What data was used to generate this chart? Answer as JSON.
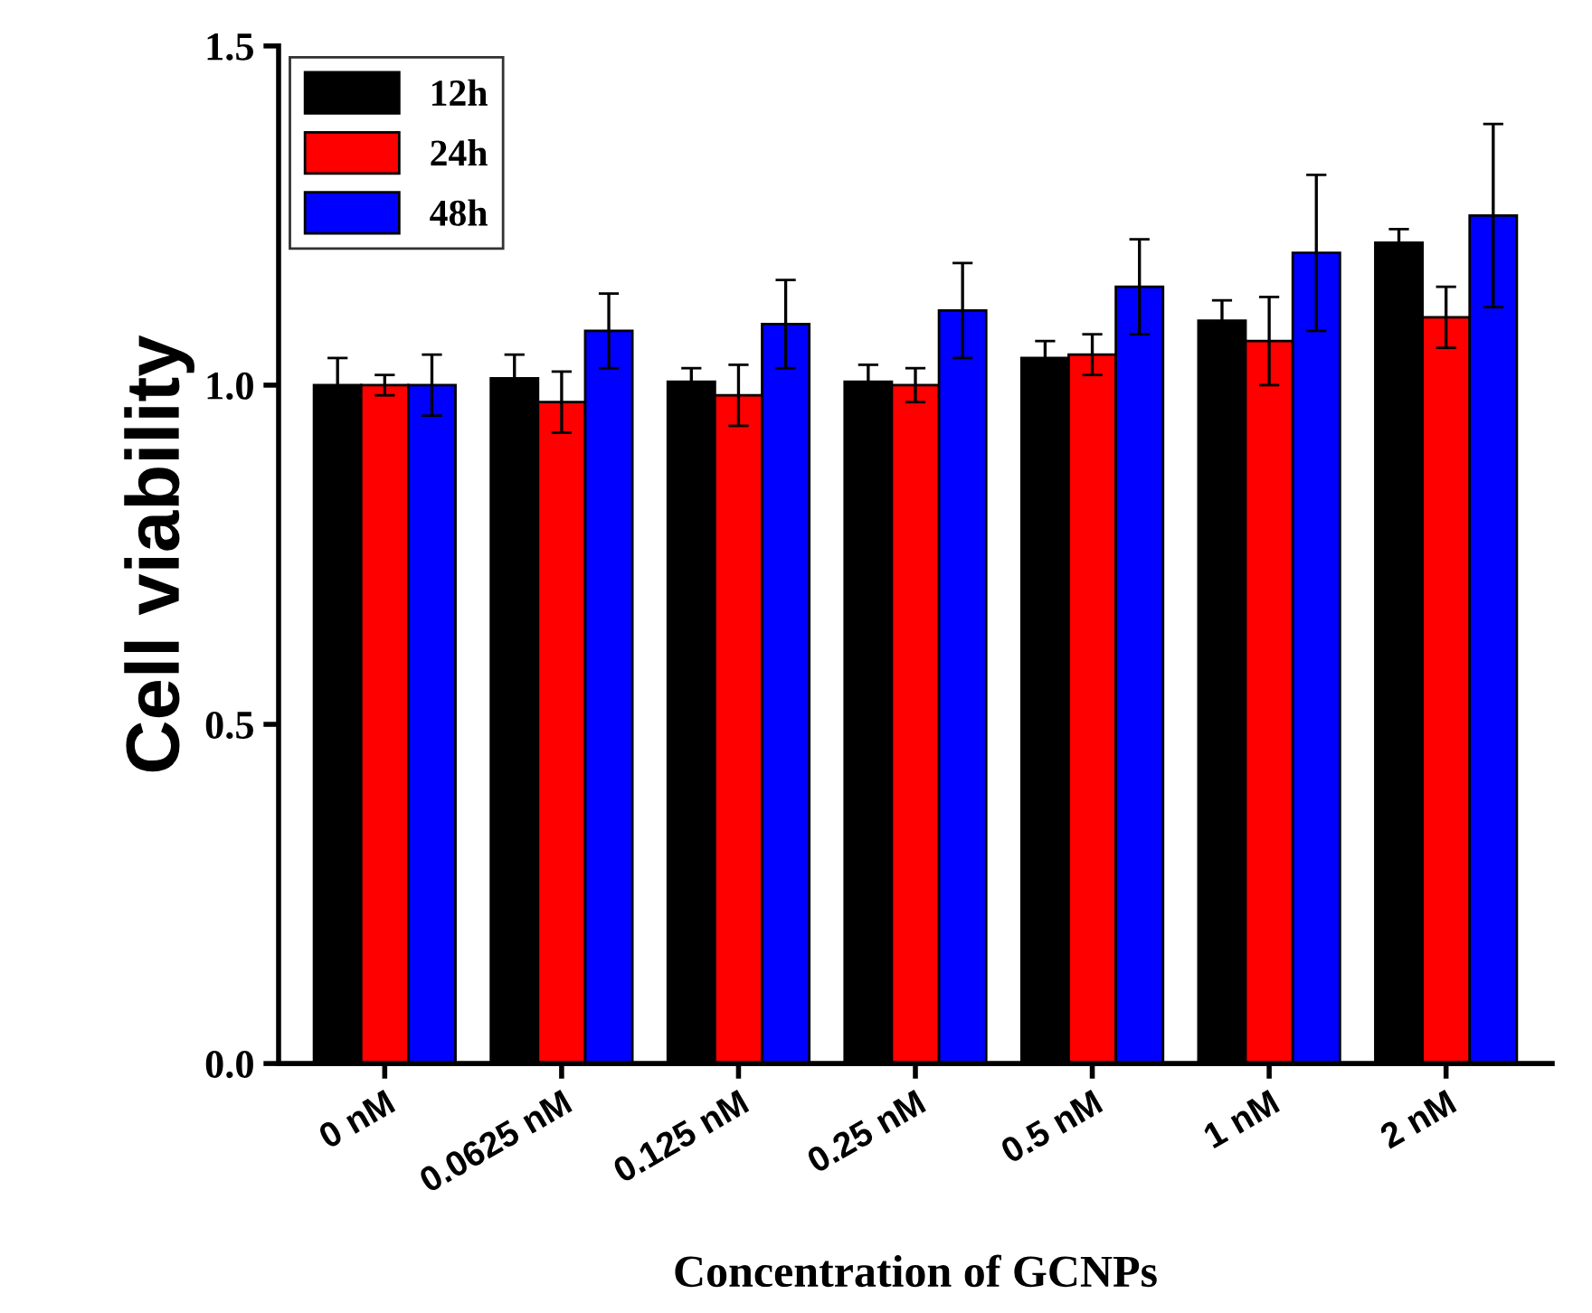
{
  "chart_data": {
    "type": "bar",
    "xlabel": "Concentration of GCNPs",
    "ylabel": "Cell viability",
    "categories": [
      "0 nM",
      "0.0625 nM",
      "0.125 nM",
      "0.25 nM",
      "0.5 nM",
      "1 nM",
      "2 nM"
    ],
    "series": [
      {
        "name": "12h",
        "color": "#000000",
        "values": [
          1.0,
          1.01,
          1.005,
          1.005,
          1.04,
          1.095,
          1.21
        ],
        "errors": [
          0.04,
          0.035,
          0.02,
          0.025,
          0.025,
          0.03,
          0.02
        ]
      },
      {
        "name": "24h",
        "color": "#ff0000",
        "values": [
          1.0,
          0.975,
          0.985,
          1.0,
          1.045,
          1.065,
          1.1
        ],
        "errors": [
          0.015,
          0.045,
          0.045,
          0.025,
          0.03,
          0.065,
          0.045
        ]
      },
      {
        "name": "48h",
        "color": "#0000ff",
        "values": [
          1.0,
          1.08,
          1.09,
          1.11,
          1.145,
          1.195,
          1.25
        ],
        "errors": [
          0.045,
          0.055,
          0.065,
          0.07,
          0.07,
          0.115,
          0.135
        ]
      }
    ],
    "ylim": [
      0,
      1.5
    ],
    "yticks": [
      {
        "value": 0.0,
        "label": "0.0"
      },
      {
        "value": 0.5,
        "label": "0.5"
      },
      {
        "value": 1.0,
        "label": "1.0"
      },
      {
        "value": 1.5,
        "label": "1.5"
      }
    ],
    "legend": "top left",
    "grid": false
  }
}
